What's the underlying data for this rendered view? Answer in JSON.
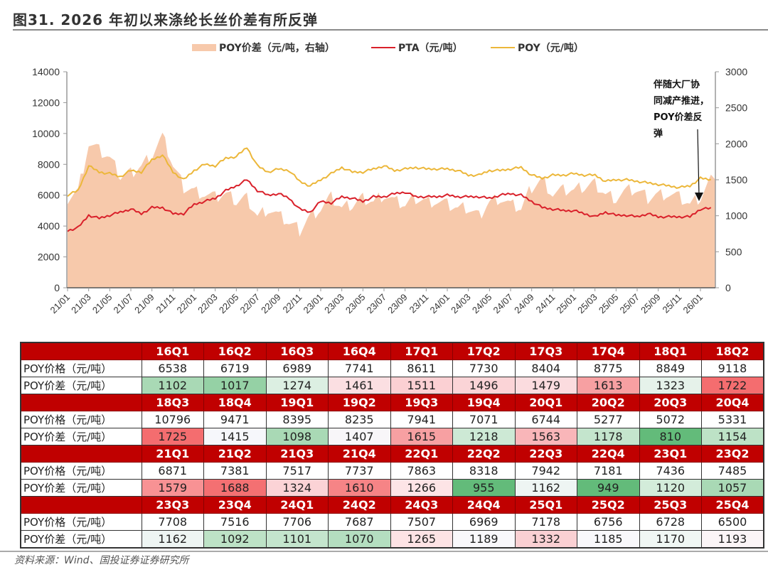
{
  "figure_title": "图31. 2026 年初以来涤纶长丝价差有所反弹",
  "source": "资料来源：Wind、国投证券证券研究所",
  "chart_data": {
    "type": "line",
    "title": "",
    "legend": [
      {
        "name": "POY价差（元/吨，右轴）",
        "kind": "area",
        "color": "#f7c9ab"
      },
      {
        "name": "PTA（元/吨）",
        "kind": "line",
        "color": "#d9202a"
      },
      {
        "name": "POY（元/吨）",
        "kind": "line",
        "color": "#ecb73a"
      }
    ],
    "legend_position": "top-center",
    "left_axis": {
      "min": 0,
      "max": 14000,
      "ticks": [
        0,
        2000,
        4000,
        6000,
        8000,
        10000,
        12000,
        14000
      ]
    },
    "right_axis": {
      "min": 0,
      "max": 3000,
      "ticks": [
        0,
        500,
        1000,
        1500,
        2000,
        2500,
        3000
      ]
    },
    "x_tick_labels": [
      "21/01",
      "21/03",
      "21/05",
      "21/07",
      "21/09",
      "21/11",
      "22/01",
      "22/03",
      "22/05",
      "22/07",
      "22/09",
      "22/11",
      "23/01",
      "23/03",
      "23/05",
      "23/07",
      "23/09",
      "23/11",
      "24/01",
      "24/03",
      "24/05",
      "24/07",
      "24/09",
      "24/11",
      "25/01",
      "25/03",
      "25/05",
      "25/07",
      "25/09",
      "25/11",
      "26/01"
    ],
    "x_months": [
      "21/01",
      "21/02",
      "21/03",
      "21/04",
      "21/05",
      "21/06",
      "21/07",
      "21/08",
      "21/09",
      "21/10",
      "21/11",
      "21/12",
      "22/01",
      "22/02",
      "22/03",
      "22/04",
      "22/05",
      "22/06",
      "22/07",
      "22/08",
      "22/09",
      "22/10",
      "22/11",
      "22/12",
      "23/01",
      "23/02",
      "23/03",
      "23/04",
      "23/05",
      "23/06",
      "23/07",
      "23/08",
      "23/09",
      "23/10",
      "23/11",
      "23/12",
      "24/01",
      "24/02",
      "24/03",
      "24/04",
      "24/05",
      "24/06",
      "24/07",
      "24/08",
      "24/09",
      "24/10",
      "24/11",
      "24/12",
      "25/01",
      "25/02",
      "25/03",
      "25/04",
      "25/05",
      "25/06",
      "25/07",
      "25/08",
      "25/09",
      "25/10",
      "25/11",
      "25/12",
      "26/01",
      "26/02"
    ],
    "series": [
      {
        "name": "POY（元/吨）",
        "axis": "left",
        "values": [
          6000,
          6300,
          7900,
          7500,
          7400,
          7200,
          7600,
          7500,
          8300,
          8600,
          7500,
          7000,
          7600,
          8000,
          7900,
          8400,
          8500,
          9100,
          7900,
          7500,
          7700,
          7600,
          6900,
          6600,
          7000,
          7400,
          7800,
          7500,
          7500,
          7700,
          7900,
          7600,
          7700,
          7800,
          7700,
          7700,
          7700,
          7600,
          7300,
          7300,
          7600,
          7600,
          7700,
          7800,
          7300,
          7100,
          7300,
          7300,
          7400,
          7300,
          7300,
          6900,
          7000,
          7000,
          6900,
          6800,
          6700,
          6600,
          6500,
          6600,
          7100,
          7000
        ]
      },
      {
        "name": "PTA（元/吨）",
        "axis": "left",
        "values": [
          3700,
          3900,
          4700,
          4500,
          4700,
          4900,
          5100,
          4800,
          5200,
          5200,
          4800,
          4800,
          5400,
          5600,
          5800,
          6300,
          6600,
          7000,
          6300,
          6000,
          6100,
          5800,
          5100,
          4900,
          5600,
          5500,
          5900,
          5800,
          5600,
          5900,
          5900,
          6100,
          6200,
          5900,
          5900,
          5900,
          6000,
          5900,
          5900,
          5900,
          5800,
          6000,
          6100,
          6000,
          5600,
          5200,
          5100,
          5000,
          5000,
          4800,
          4600,
          4900,
          4700,
          4700,
          4600,
          4800,
          4600,
          4600,
          4600,
          4600,
          5100,
          5150
        ]
      },
      {
        "name": "POY价差（元/吨，右轴）",
        "axis": "right",
        "values": [
          1250,
          1350,
          2000,
          1900,
          1800,
          1550,
          1600,
          1700,
          1850,
          2100,
          1700,
          1400,
          1350,
          1300,
          1250,
          1300,
          1200,
          1250,
          1000,
          1100,
          1000,
          900,
          800,
          1000,
          1100,
          1250,
          1100,
          1150,
          1250,
          1200,
          1300,
          1200,
          1150,
          1250,
          1200,
          1200,
          1150,
          1100,
          1100,
          1000,
          1200,
          1250,
          1150,
          1100,
          1400,
          1500,
          1300,
          1350,
          1350,
          1400,
          1450,
          1300,
          1250,
          1350,
          1350,
          1250,
          1300,
          1300,
          1250,
          1150,
          1250,
          1500
        ]
      }
    ],
    "annotation": {
      "text_lines": [
        "伴随大厂协",
        "同减产推进，",
        "POY价差反",
        "弹"
      ],
      "points_to": "26/01"
    }
  },
  "table": {
    "row_labels": {
      "price": "POY价格（元/吨）",
      "spread": "POY价差（元/吨）"
    },
    "blocks": [
      {
        "quarters": [
          "16Q1",
          "16Q2",
          "16Q3",
          "16Q4",
          "17Q1",
          "17Q2",
          "17Q3",
          "17Q4",
          "18Q1",
          "18Q2"
        ],
        "price": [
          "6538",
          "6719",
          "6989",
          "7741",
          "8611",
          "7730",
          "8404",
          "8775",
          "8849",
          "9118"
        ],
        "spread": [
          "1102",
          "1017",
          "1274",
          "1461",
          "1511",
          "1496",
          "1479",
          "1613",
          "1323",
          "1722"
        ],
        "spread_colors": [
          "#a9d9b5",
          "#95d1a5",
          "#dcefe2",
          "#fbdfe2",
          "#fbd0d3",
          "#fbd4d7",
          "#fbdcdf",
          "#f7a0a2",
          "#e6f2ea",
          "#f46d6f"
        ]
      },
      {
        "quarters": [
          "18Q3",
          "18Q4",
          "19Q1",
          "19Q2",
          "19Q3",
          "19Q4",
          "20Q1",
          "20Q2",
          "20Q3",
          "20Q4"
        ],
        "price": [
          "10796",
          "9471",
          "8395",
          "8235",
          "7941",
          "7071",
          "6744",
          "5277",
          "5072",
          "5331"
        ],
        "spread": [
          "1725",
          "1415",
          "1098",
          "1407",
          "1615",
          "1218",
          "1563",
          "1178",
          "810",
          "1154"
        ],
        "spread_colors": [
          "#f46d6f",
          "#f6f7fb",
          "#a9d9b5",
          "#f8f6f9",
          "#f7a0a2",
          "#cde9d5",
          "#f9b6b9",
          "#c4e5cd",
          "#63bb7a",
          "#bde2c6"
        ]
      },
      {
        "quarters": [
          "21Q1",
          "21Q2",
          "21Q3",
          "21Q4",
          "22Q1",
          "22Q2",
          "22Q3",
          "22Q4",
          "23Q1",
          "23Q2"
        ],
        "price": [
          "6871",
          "7381",
          "7517",
          "7737",
          "7863",
          "8318",
          "7942",
          "7181",
          "7436",
          "7485"
        ],
        "spread": [
          "1579",
          "1688",
          "1324",
          "1610",
          "1266",
          "955",
          "1162",
          "949",
          "1120",
          "1057"
        ],
        "spread_colors": [
          "#f89294",
          "#f47072",
          "#fbd3d6",
          "#f68486",
          "#fde4e6",
          "#63bb7a",
          "#eef5f3",
          "#63bb7a",
          "#d3ecda",
          "#a9d9b5"
        ]
      },
      {
        "quarters": [
          "23Q3",
          "23Q4",
          "24Q1",
          "24Q2",
          "24Q3",
          "24Q4",
          "25Q1",
          "25Q2",
          "25Q3",
          "25Q4"
        ],
        "price": [
          "7708",
          "7516",
          "7706",
          "7687",
          "7507",
          "6969",
          "7178",
          "6756",
          "6728",
          "6500"
        ],
        "spread": [
          "1162",
          "1092",
          "1101",
          "1070",
          "1265",
          "1189",
          "1332",
          "1185",
          "1170",
          "1193"
        ],
        "spread_colors": [
          "#eef5f3",
          "#bde2c6",
          "#c4e5cd",
          "#b4dec0",
          "#fde3e5",
          "#f9f8fb",
          "#fad0d3",
          "#f9f8fb",
          "#f0f7f4",
          "#fbf5f7"
        ]
      }
    ]
  }
}
